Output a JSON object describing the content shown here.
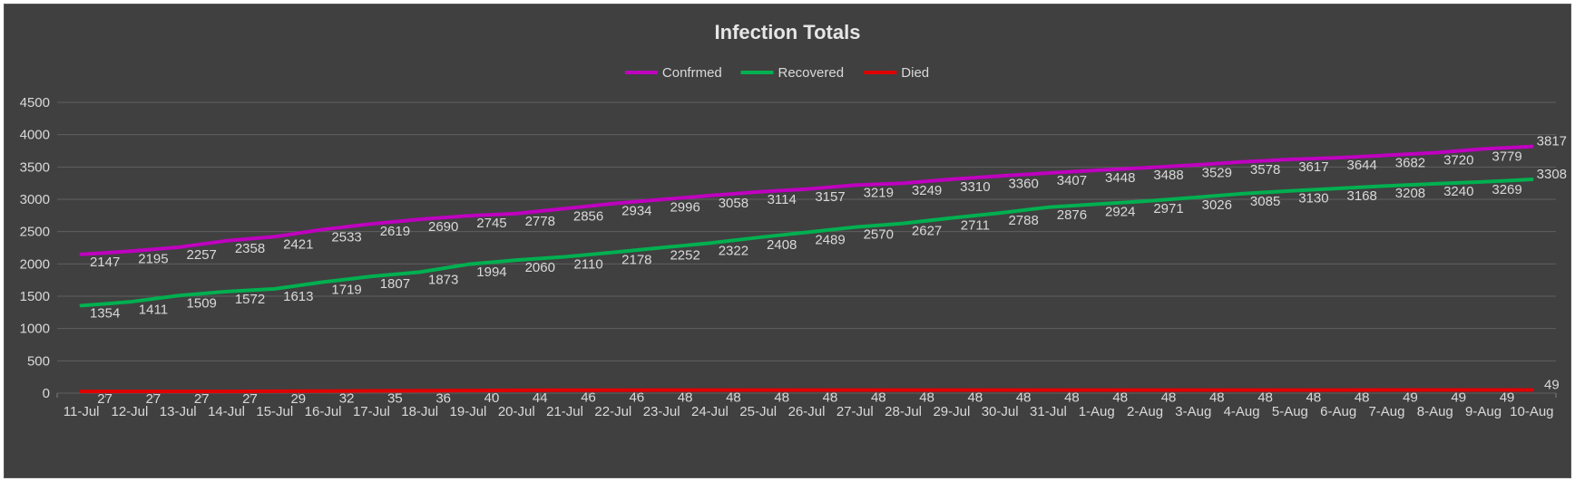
{
  "chart_data": {
    "type": "line",
    "title": "Infection Totals",
    "categories": [
      "11-Jul",
      "12-Jul",
      "13-Jul",
      "14-Jul",
      "15-Jul",
      "16-Jul",
      "17-Jul",
      "18-Jul",
      "19-Jul",
      "20-Jul",
      "21-Jul",
      "22-Jul",
      "23-Jul",
      "24-Jul",
      "25-Jul",
      "26-Jul",
      "27-Jul",
      "28-Jul",
      "29-Jul",
      "30-Jul",
      "31-Jul",
      "1-Aug",
      "2-Aug",
      "3-Aug",
      "4-Aug",
      "5-Aug",
      "6-Aug",
      "7-Aug",
      "8-Aug",
      "9-Aug",
      "10-Aug"
    ],
    "series": [
      {
        "name": "Confrmed",
        "color": "#BF00BF",
        "values": [
          2147,
          2195,
          2257,
          2358,
          2421,
          2533,
          2619,
          2690,
          2745,
          2778,
          2856,
          2934,
          2996,
          3058,
          3114,
          3157,
          3219,
          3249,
          3310,
          3360,
          3407,
          3448,
          3488,
          3529,
          3578,
          3617,
          3644,
          3682,
          3720,
          3779,
          3817
        ]
      },
      {
        "name": "Recovered",
        "color": "#00B050",
        "values": [
          1354,
          1411,
          1509,
          1572,
          1613,
          1719,
          1807,
          1873,
          1994,
          2060,
          2110,
          2178,
          2252,
          2322,
          2408,
          2489,
          2570,
          2627,
          2711,
          2788,
          2876,
          2924,
          2971,
          3026,
          3085,
          3130,
          3168,
          3208,
          3240,
          3269,
          3308
        ]
      },
      {
        "name": "Died",
        "color": "#E00000",
        "values": [
          27,
          27,
          27,
          27,
          29,
          32,
          35,
          36,
          40,
          44,
          46,
          46,
          48,
          48,
          48,
          48,
          48,
          48,
          48,
          48,
          48,
          48,
          48,
          48,
          48,
          48,
          48,
          49,
          49,
          49,
          49
        ]
      }
    ],
    "ylim": [
      0,
      4500
    ],
    "yticks": [
      0,
      500,
      1000,
      1500,
      2000,
      2500,
      3000,
      3500,
      4000,
      4500
    ],
    "grid": true,
    "legend": "top",
    "xlabel": "",
    "ylabel": ""
  }
}
